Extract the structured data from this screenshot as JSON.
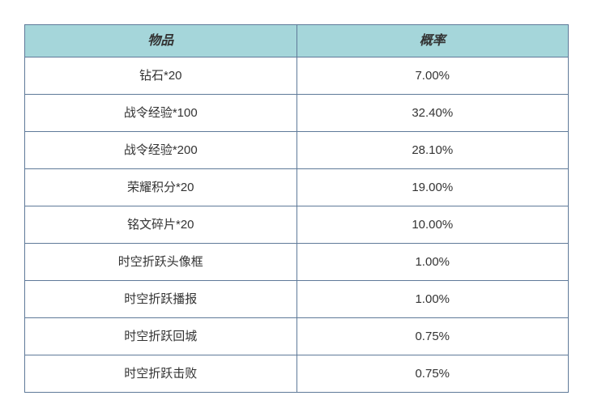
{
  "table": {
    "type": "table",
    "columns": [
      "物品",
      "概率"
    ],
    "rows": [
      [
        "钻石*20",
        "7.00%"
      ],
      [
        "战令经验*100",
        "32.40%"
      ],
      [
        "战令经验*200",
        "28.10%"
      ],
      [
        "荣耀积分*20",
        "19.00%"
      ],
      [
        "铭文碎片*20",
        "10.00%"
      ],
      [
        "时空折跃头像框",
        "1.00%"
      ],
      [
        "时空折跃播报",
        "1.00%"
      ],
      [
        "时空折跃回城",
        "0.75%"
      ],
      [
        "时空折跃击败",
        "0.75%"
      ]
    ],
    "header_bg": "#a5d6da",
    "header_text_color": "#333333",
    "body_bg": "#ffffff",
    "body_text_color": "#333333",
    "border_color": "#5f7a99",
    "header_fontsize": 16,
    "body_fontsize": 15,
    "header_font_weight": "bold",
    "header_font_style": "italic",
    "header_row_height": 40,
    "body_row_height": 46,
    "col_widths_pct": [
      50,
      50
    ]
  }
}
